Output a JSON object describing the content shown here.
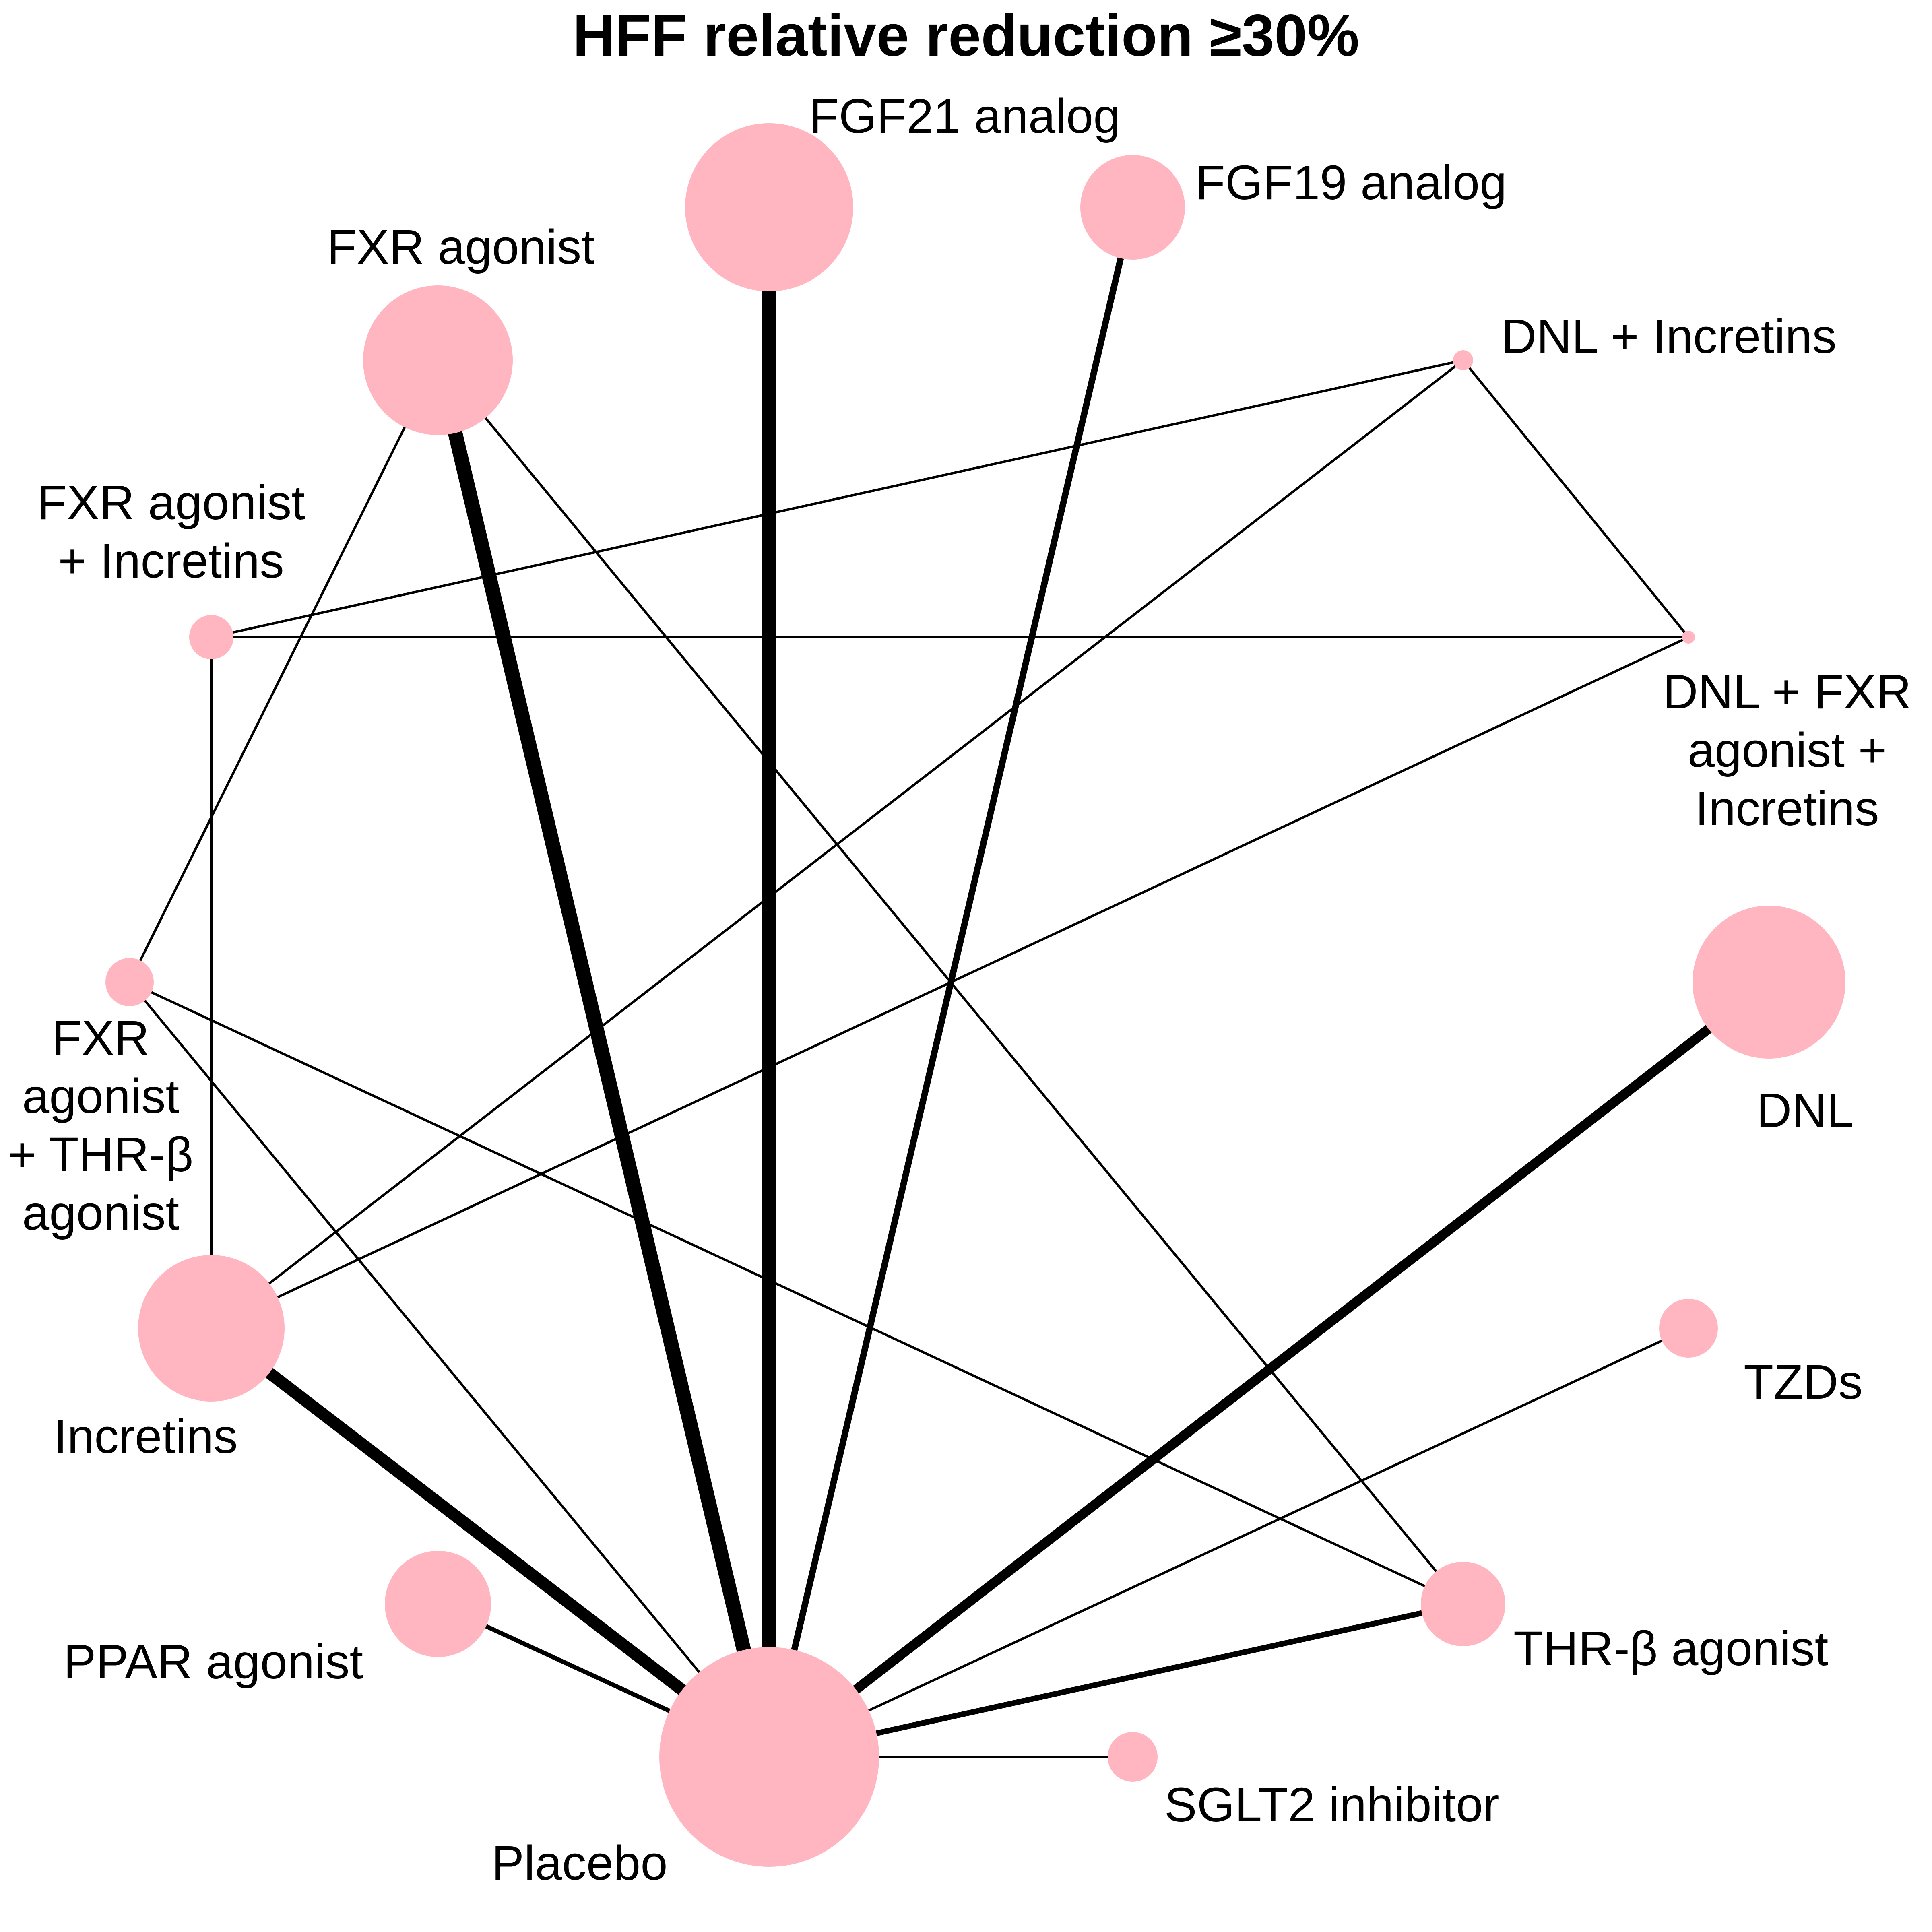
{
  "title": "HFF relative reduction ≥30%",
  "colors": {
    "node": "#ffb6c1",
    "edge": "#000000",
    "background": "#ffffff"
  },
  "nodes": [
    {
      "id": "fgf21",
      "label_lines": [
        "FGF21 analog"
      ]
    },
    {
      "id": "fgf19",
      "label_lines": [
        "FGF19 analog"
      ]
    },
    {
      "id": "dnl-incretins",
      "label_lines": [
        "DNL + Incretins"
      ]
    },
    {
      "id": "dnl-fxr-incretins",
      "label_lines": [
        "DNL + FXR",
        "agonist +",
        "Incretins"
      ]
    },
    {
      "id": "dnl",
      "label_lines": [
        "DNL"
      ]
    },
    {
      "id": "tzds",
      "label_lines": [
        "TZDs"
      ]
    },
    {
      "id": "thr-beta",
      "label_lines": [
        "THR-β agonist"
      ]
    },
    {
      "id": "sglt2",
      "label_lines": [
        "SGLT2 inhibitor"
      ]
    },
    {
      "id": "placebo",
      "label_lines": [
        "Placebo"
      ]
    },
    {
      "id": "ppar",
      "label_lines": [
        "PPAR agonist"
      ]
    },
    {
      "id": "incretins",
      "label_lines": [
        "Incretins"
      ]
    },
    {
      "id": "fxr-thr",
      "label_lines": [
        "FXR",
        "agonist",
        "+ THR-β",
        "agonist"
      ]
    },
    {
      "id": "fxr-incretins",
      "label_lines": [
        "FXR agonist",
        "+ Incretins"
      ]
    },
    {
      "id": "fxr",
      "label_lines": [
        "FXR agonist"
      ]
    }
  ],
  "edges": [
    {
      "from": "placebo",
      "to": "fgf21"
    },
    {
      "from": "placebo",
      "to": "fxr"
    },
    {
      "from": "placebo",
      "to": "incretins"
    },
    {
      "from": "placebo",
      "to": "dnl"
    },
    {
      "from": "placebo",
      "to": "fgf19"
    },
    {
      "from": "placebo",
      "to": "thr-beta"
    },
    {
      "from": "placebo",
      "to": "ppar"
    },
    {
      "from": "placebo",
      "to": "sglt2"
    },
    {
      "from": "placebo",
      "to": "tzds"
    },
    {
      "from": "placebo",
      "to": "fxr-thr"
    },
    {
      "from": "fxr",
      "to": "thr-beta"
    },
    {
      "from": "fxr",
      "to": "fxr-thr"
    },
    {
      "from": "fxr-thr",
      "to": "thr-beta"
    },
    {
      "from": "fxr-incretins",
      "to": "dnl-incretins"
    },
    {
      "from": "fxr-incretins",
      "to": "dnl-fxr-incretins"
    },
    {
      "from": "fxr-incretins",
      "to": "incretins"
    },
    {
      "from": "incretins",
      "to": "dnl-incretins"
    },
    {
      "from": "incretins",
      "to": "dnl-fxr-incretins"
    },
    {
      "from": "dnl-incretins",
      "to": "dnl-fxr-incretins"
    }
  ]
}
